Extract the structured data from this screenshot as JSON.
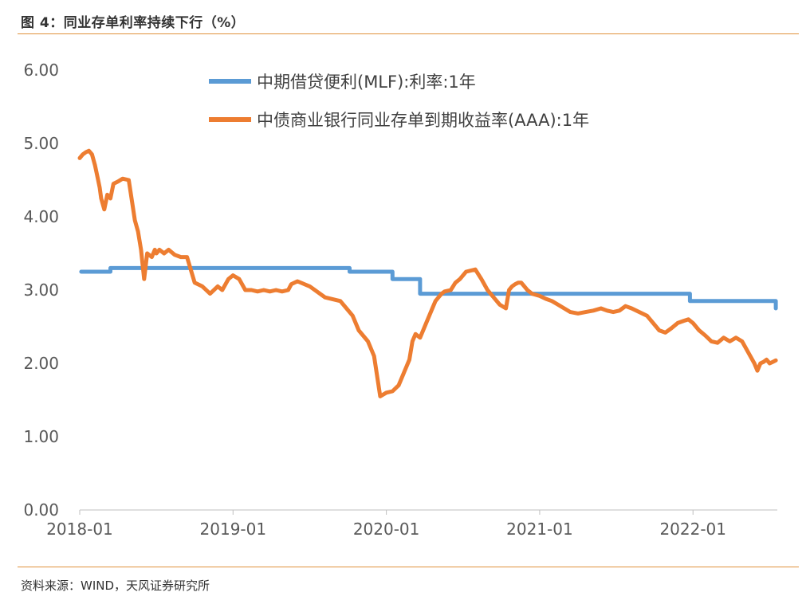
{
  "header": {
    "title": "图 4：同业存单利率持续下行（%）"
  },
  "footer": {
    "source": "资料来源：WIND，天风证券研究所"
  },
  "chart_data": {
    "type": "line",
    "title": "图 4：同业存单利率持续下行（%）",
    "xlabel": "",
    "ylabel": "",
    "ylim": [
      0,
      6
    ],
    "xlim": [
      2018.0,
      2022.55
    ],
    "y_ticks": [
      "0.00",
      "1.00",
      "2.00",
      "3.00",
      "4.00",
      "5.00",
      "6.00"
    ],
    "y_tick_values": [
      0,
      1,
      2,
      3,
      4,
      5,
      6
    ],
    "x_ticks": [
      "2018-01",
      "2019-01",
      "2020-01",
      "2021-01",
      "2022-01"
    ],
    "x_tick_values": [
      2018.0,
      2019.0,
      2020.0,
      2021.0,
      2022.0
    ],
    "grid": false,
    "legend_position": "top-center",
    "series": [
      {
        "name": "中期借贷便利(MLF):利率:1年",
        "color": "#5b9bd5",
        "step": true,
        "x": [
          2018.01,
          2018.2,
          2019.76,
          2020.04,
          2020.22,
          2021.98,
          2022.53,
          2022.54
        ],
        "y": [
          3.25,
          3.3,
          3.25,
          3.15,
          2.95,
          2.85,
          2.85,
          2.75
        ]
      },
      {
        "name": "中债商业银行同业存单到期收益率(AAA):1年",
        "color": "#ed7d31",
        "step": false,
        "x": [
          2018.0,
          2018.02,
          2018.04,
          2018.06,
          2018.08,
          2018.1,
          2018.12,
          2018.13,
          2018.14,
          2018.16,
          2018.18,
          2018.2,
          2018.22,
          2018.25,
          2018.28,
          2018.32,
          2018.36,
          2018.38,
          2018.4,
          2018.42,
          2018.44,
          2018.47,
          2018.49,
          2018.5,
          2018.52,
          2018.55,
          2018.58,
          2018.62,
          2018.66,
          2018.7,
          2018.75,
          2018.8,
          2018.85,
          2018.9,
          2018.93,
          2018.97,
          2019.0,
          2019.04,
          2019.08,
          2019.12,
          2019.16,
          2019.2,
          2019.24,
          2019.28,
          2019.32,
          2019.36,
          2019.38,
          2019.42,
          2019.5,
          2019.6,
          2019.7,
          2019.74,
          2019.78,
          2019.82,
          2019.88,
          2019.92,
          2019.96,
          2020.0,
          2020.04,
          2020.08,
          2020.12,
          2020.15,
          2020.17,
          2020.19,
          2020.22,
          2020.26,
          2020.3,
          2020.32,
          2020.34,
          2020.36,
          2020.38,
          2020.42,
          2020.45,
          2020.48,
          2020.52,
          2020.58,
          2020.62,
          2020.66,
          2020.7,
          2020.74,
          2020.78,
          2020.8,
          2020.82,
          2020.84,
          2020.86,
          2020.88,
          2020.9,
          2020.92,
          2020.95,
          2021.0,
          2021.04,
          2021.08,
          2021.12,
          2021.16,
          2021.2,
          2021.25,
          2021.3,
          2021.35,
          2021.4,
          2021.44,
          2021.48,
          2021.52,
          2021.56,
          2021.6,
          2021.65,
          2021.7,
          2021.74,
          2021.78,
          2021.82,
          2021.86,
          2021.9,
          2021.94,
          2021.97,
          2022.0,
          2022.04,
          2022.08,
          2022.12,
          2022.16,
          2022.2,
          2022.24,
          2022.28,
          2022.32,
          2022.36,
          2022.4,
          2022.42,
          2022.44,
          2022.46,
          2022.48,
          2022.5,
          2022.52,
          2022.54
        ],
        "y": [
          4.8,
          4.85,
          4.88,
          4.9,
          4.85,
          4.7,
          4.5,
          4.4,
          4.25,
          4.1,
          4.3,
          4.25,
          4.45,
          4.48,
          4.52,
          4.5,
          3.95,
          3.8,
          3.55,
          3.15,
          3.5,
          3.45,
          3.55,
          3.5,
          3.55,
          3.5,
          3.55,
          3.48,
          3.45,
          3.45,
          3.1,
          3.05,
          2.95,
          3.05,
          3.0,
          3.15,
          3.2,
          3.15,
          3.0,
          3.0,
          2.98,
          3.0,
          2.98,
          3.0,
          2.98,
          3.0,
          3.08,
          3.12,
          3.05,
          2.9,
          2.85,
          2.75,
          2.65,
          2.45,
          2.3,
          2.1,
          1.55,
          1.6,
          1.62,
          1.7,
          1.9,
          2.05,
          2.3,
          2.4,
          2.35,
          2.55,
          2.75,
          2.85,
          2.9,
          2.95,
          2.98,
          3.0,
          3.1,
          3.15,
          3.25,
          3.28,
          3.15,
          3.0,
          2.9,
          2.8,
          2.75,
          3.0,
          3.05,
          3.08,
          3.1,
          3.1,
          3.05,
          3.0,
          2.95,
          2.92,
          2.88,
          2.85,
          2.8,
          2.75,
          2.7,
          2.68,
          2.7,
          2.72,
          2.75,
          2.72,
          2.7,
          2.72,
          2.78,
          2.75,
          2.7,
          2.65,
          2.55,
          2.45,
          2.42,
          2.48,
          2.55,
          2.58,
          2.6,
          2.55,
          2.45,
          2.38,
          2.3,
          2.28,
          2.35,
          2.3,
          2.35,
          2.3,
          2.15,
          2.0,
          1.9,
          2.0,
          2.02,
          2.05,
          2.0,
          2.02,
          2.04
        ]
      }
    ]
  }
}
